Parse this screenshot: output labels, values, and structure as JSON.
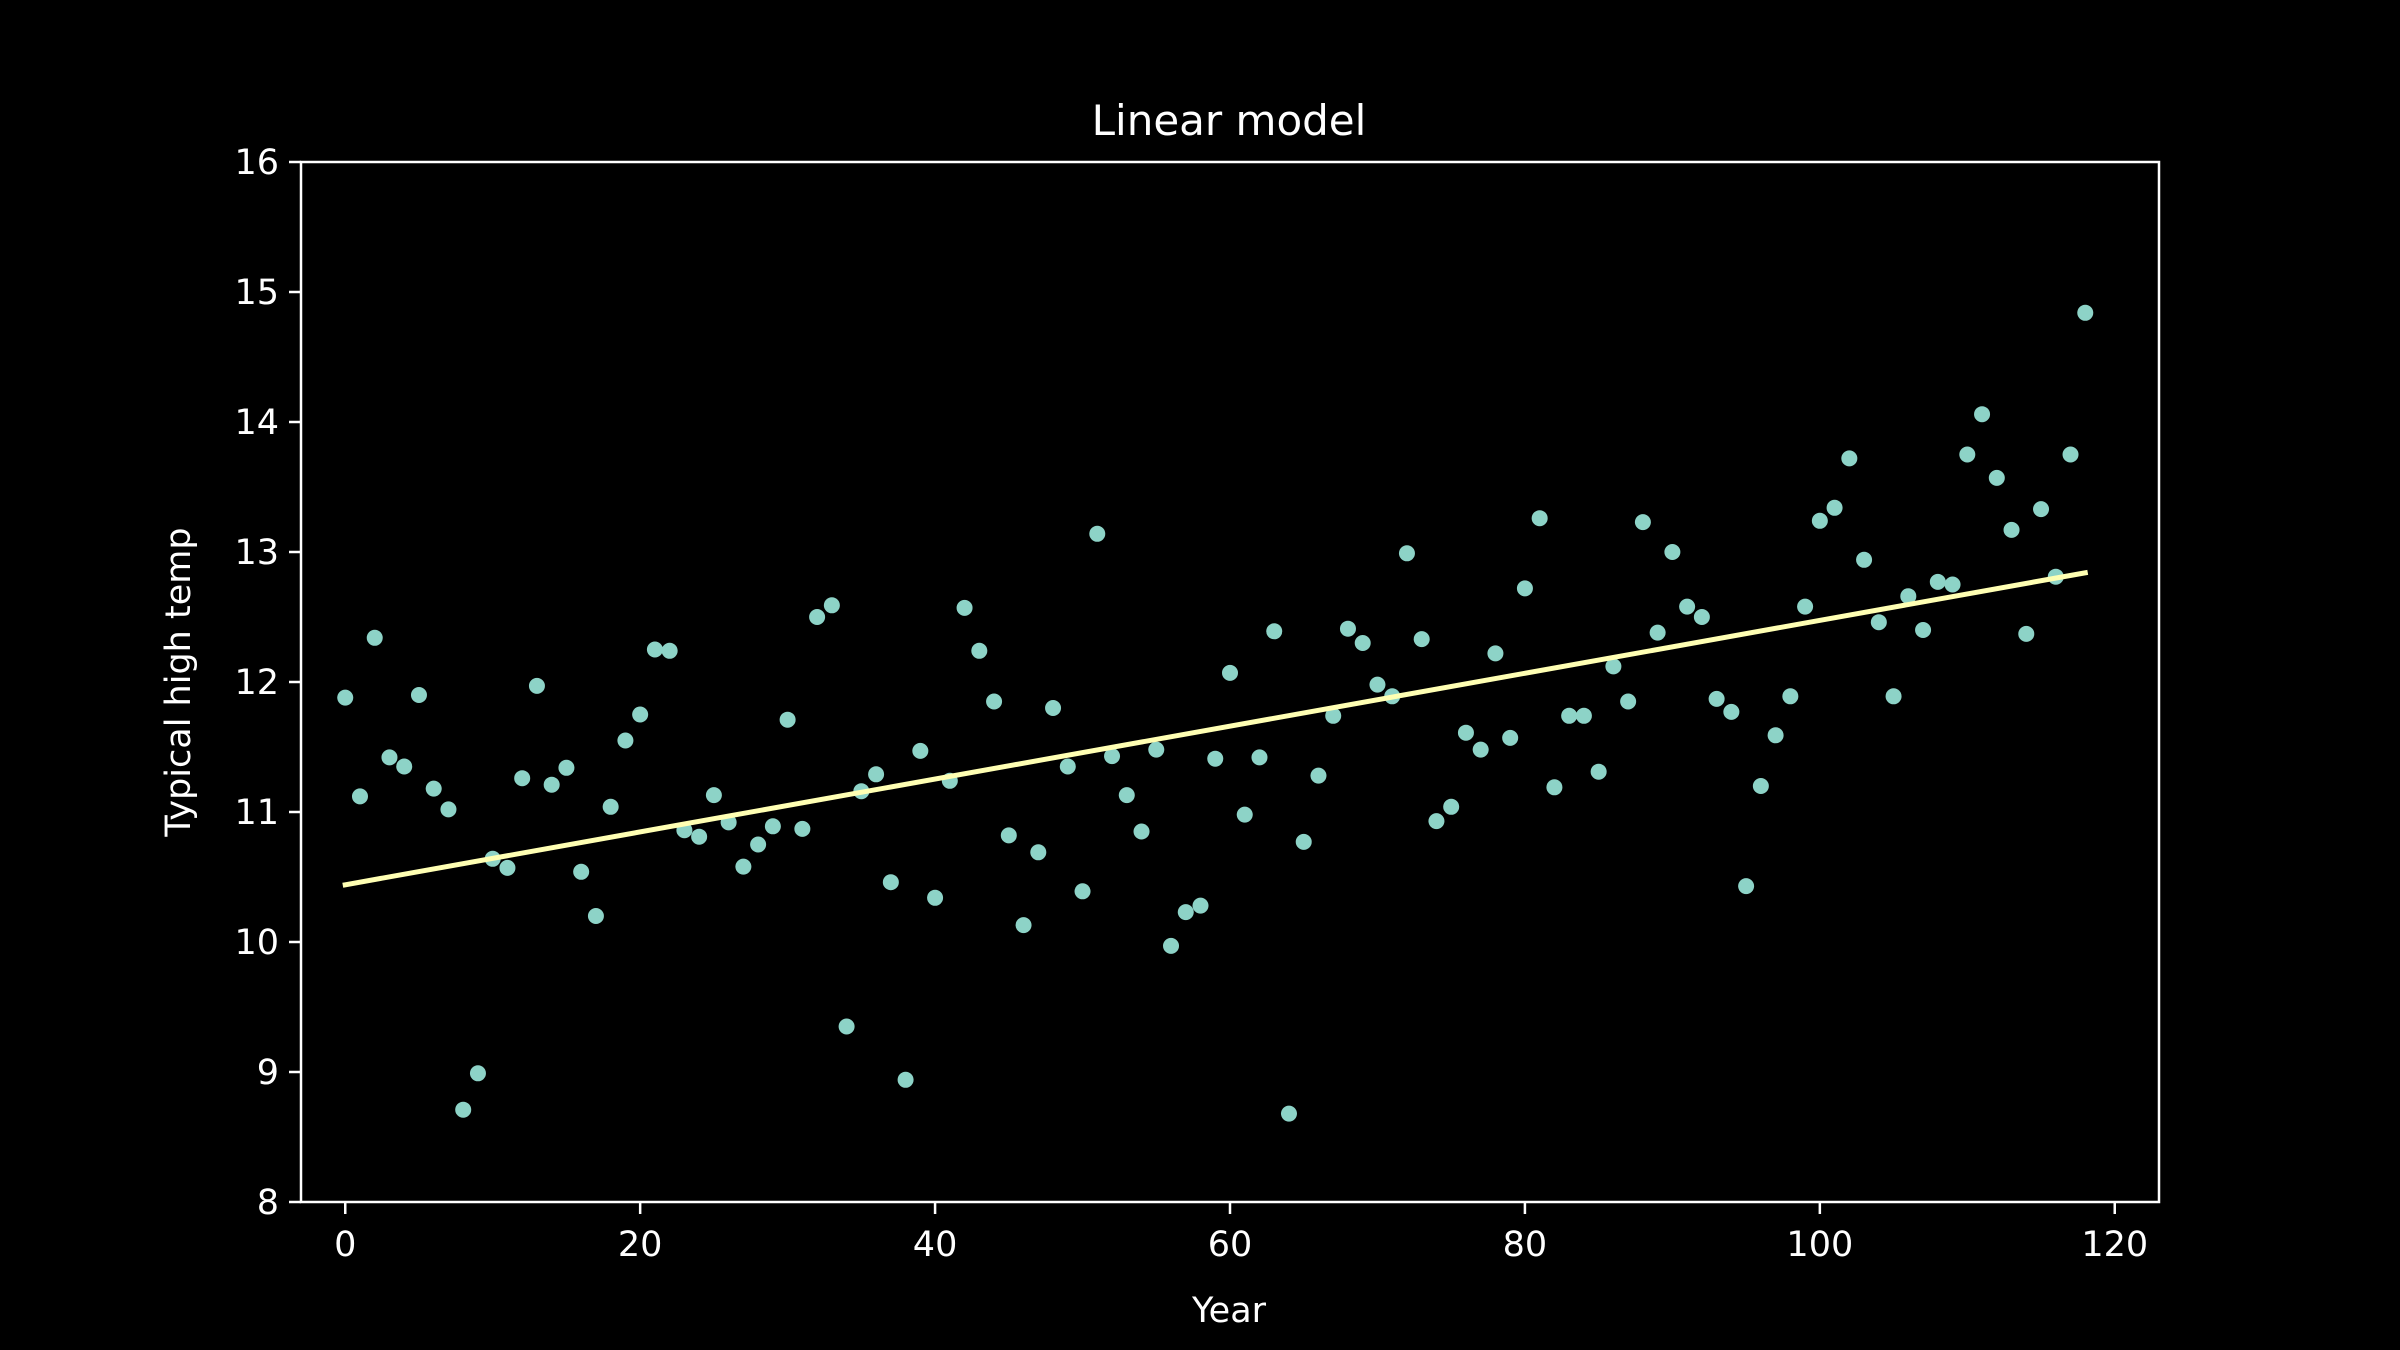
{
  "chart_data": {
    "type": "scatter",
    "title": "Linear model",
    "xlabel": "Year",
    "ylabel": "Typical high temp",
    "xlim": [
      -3,
      123
    ],
    "ylim": [
      8,
      16
    ],
    "xticks": [
      0,
      20,
      40,
      60,
      80,
      100,
      120
    ],
    "yticks": [
      8,
      9,
      10,
      11,
      12,
      13,
      14,
      15,
      16
    ],
    "grid": false,
    "background_color": "#000000",
    "axis_color": "#ffffff",
    "scatter_color": "#8dd3c7",
    "line_color": "#ffffb3",
    "scatter": {
      "x": [
        0,
        1,
        2,
        3,
        4,
        5,
        6,
        7,
        8,
        9,
        10,
        11,
        12,
        13,
        14,
        15,
        16,
        17,
        18,
        19,
        20,
        21,
        22,
        23,
        24,
        25,
        26,
        27,
        28,
        29,
        30,
        31,
        32,
        33,
        34,
        35,
        36,
        37,
        38,
        39,
        40,
        41,
        42,
        43,
        44,
        45,
        46,
        47,
        48,
        49,
        50,
        51,
        52,
        53,
        54,
        55,
        56,
        57,
        58,
        59,
        60,
        61,
        62,
        63,
        64,
        65,
        66,
        67,
        68,
        69,
        70,
        71,
        72,
        73,
        74,
        75,
        76,
        77,
        78,
        79,
        80,
        81,
        82,
        83,
        84,
        85,
        86,
        87,
        88,
        89,
        90,
        91,
        92,
        93,
        94,
        95,
        96,
        97,
        98,
        99,
        100,
        101,
        102,
        103,
        104,
        105,
        106,
        107,
        108,
        109,
        110,
        111,
        112,
        113,
        114,
        115,
        116,
        117,
        118
      ],
      "y": [
        11.88,
        11.12,
        12.34,
        11.42,
        11.35,
        11.9,
        11.18,
        11.02,
        8.71,
        8.99,
        10.64,
        10.57,
        11.26,
        11.97,
        11.21,
        11.34,
        10.54,
        10.2,
        11.04,
        11.55,
        11.75,
        12.25,
        12.24,
        10.86,
        10.81,
        11.13,
        10.92,
        10.58,
        10.75,
        10.89,
        11.71,
        10.87,
        12.5,
        12.59,
        9.35,
        11.16,
        11.29,
        10.46,
        8.94,
        11.47,
        10.34,
        11.24,
        12.57,
        12.24,
        11.85,
        10.82,
        10.13,
        10.69,
        11.8,
        11.35,
        10.39,
        13.14,
        11.43,
        11.13,
        10.85,
        11.48,
        9.97,
        10.23,
        10.28,
        11.41,
        12.07,
        10.98,
        11.42,
        12.39,
        8.68,
        10.77,
        11.28,
        11.74,
        12.41,
        12.3,
        11.98,
        11.89,
        12.99,
        12.33,
        10.93,
        11.04,
        11.61,
        11.48,
        12.22,
        11.57,
        12.72,
        13.26,
        11.19,
        11.74,
        11.74,
        11.31,
        12.12,
        11.85,
        13.23,
        12.38,
        13.0,
        12.58,
        12.5,
        11.87,
        11.77,
        10.43,
        11.2,
        11.59,
        11.89,
        12.58,
        13.24,
        13.34,
        13.72,
        12.94,
        12.46,
        11.89,
        12.66,
        12.4,
        12.77,
        12.75,
        13.75,
        14.06,
        13.57,
        13.17,
        12.37,
        13.33,
        12.81,
        13.75,
        14.84
      ]
    },
    "line": {
      "x": [
        0,
        118
      ],
      "y": [
        10.44,
        12.84
      ]
    }
  }
}
